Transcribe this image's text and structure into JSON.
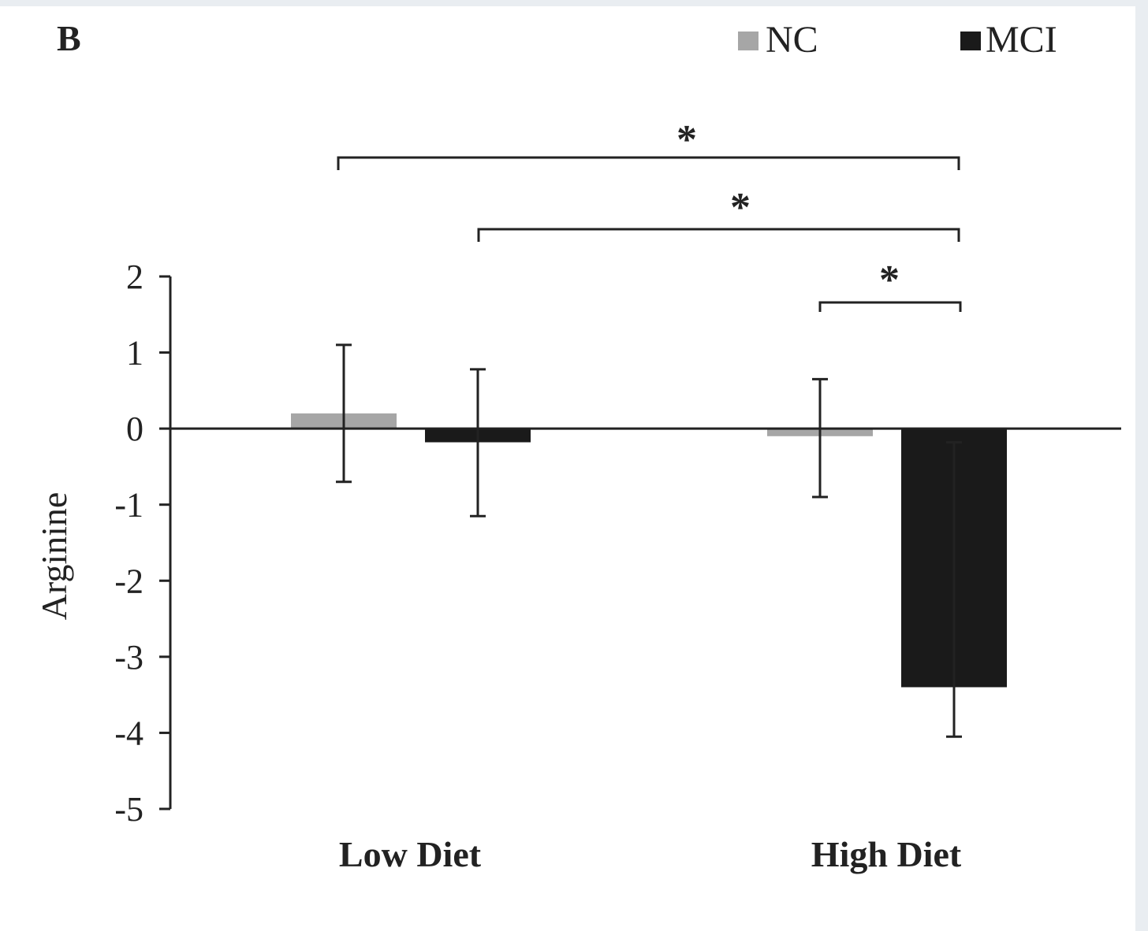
{
  "panel_label": "B",
  "colors": {
    "nc": "#a6a6a6",
    "mci": "#1a1a1a",
    "axis": "#222222",
    "text": "#222222"
  },
  "chart_data": {
    "type": "bar",
    "categories": [
      "Low Diet",
      "High Diet"
    ],
    "series": [
      {
        "name": "NC",
        "values": [
          0.2,
          -0.1
        ],
        "error_low": [
          -0.7,
          -0.9
        ],
        "error_high": [
          1.1,
          0.65
        ]
      },
      {
        "name": "MCI",
        "values": [
          -0.18,
          -3.4
        ],
        "error_low": [
          -1.15,
          -4.05
        ],
        "error_high": [
          0.78,
          -0.18
        ]
      }
    ],
    "ylabel": "Arginine",
    "xlabel": "",
    "ylim": [
      -5,
      2
    ],
    "yticks": [
      "2",
      "1",
      "0",
      "-1",
      "-2",
      "-3",
      "-4",
      "-5"
    ],
    "legend": {
      "position": "top-right",
      "entries": [
        "NC",
        "MCI"
      ]
    },
    "grid": false,
    "significance": [
      {
        "from": "NC · Low Diet",
        "to": "MCI · High Diet",
        "label": "*"
      },
      {
        "from": "MCI · Low Diet",
        "to": "MCI · High Diet",
        "label": "*"
      },
      {
        "from": "NC · High Diet",
        "to": "MCI · High Diet",
        "label": "*"
      }
    ]
  }
}
